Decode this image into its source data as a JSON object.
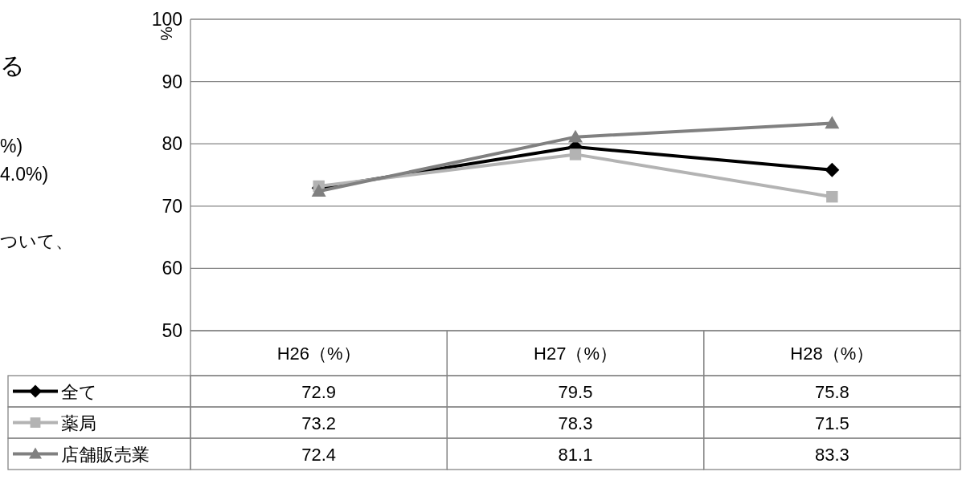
{
  "chart_data": {
    "type": "line",
    "ylabel": "%",
    "categories": [
      "H26（%）",
      "H27（%）",
      "H28（%）"
    ],
    "series": [
      {
        "name": "全て",
        "color": "#000000",
        "marker": "diamond",
        "values": [
          72.9,
          79.5,
          75.8
        ]
      },
      {
        "name": "薬局",
        "color": "#b3b3b3",
        "marker": "square",
        "values": [
          73.2,
          78.3,
          71.5
        ]
      },
      {
        "name": "店舗販売業",
        "color": "#808080",
        "marker": "triangle",
        "values": [
          72.4,
          81.1,
          83.3
        ]
      }
    ],
    "ylim": [
      50,
      100
    ],
    "yticks": [
      50,
      60,
      70,
      80,
      90,
      100
    ],
    "grid": "y",
    "data_labels": true,
    "legend": "bottom left",
    "line_style": "solid",
    "annotations": [
      "る",
      "%)",
      "4.0%)",
      "ついて、"
    ]
  }
}
